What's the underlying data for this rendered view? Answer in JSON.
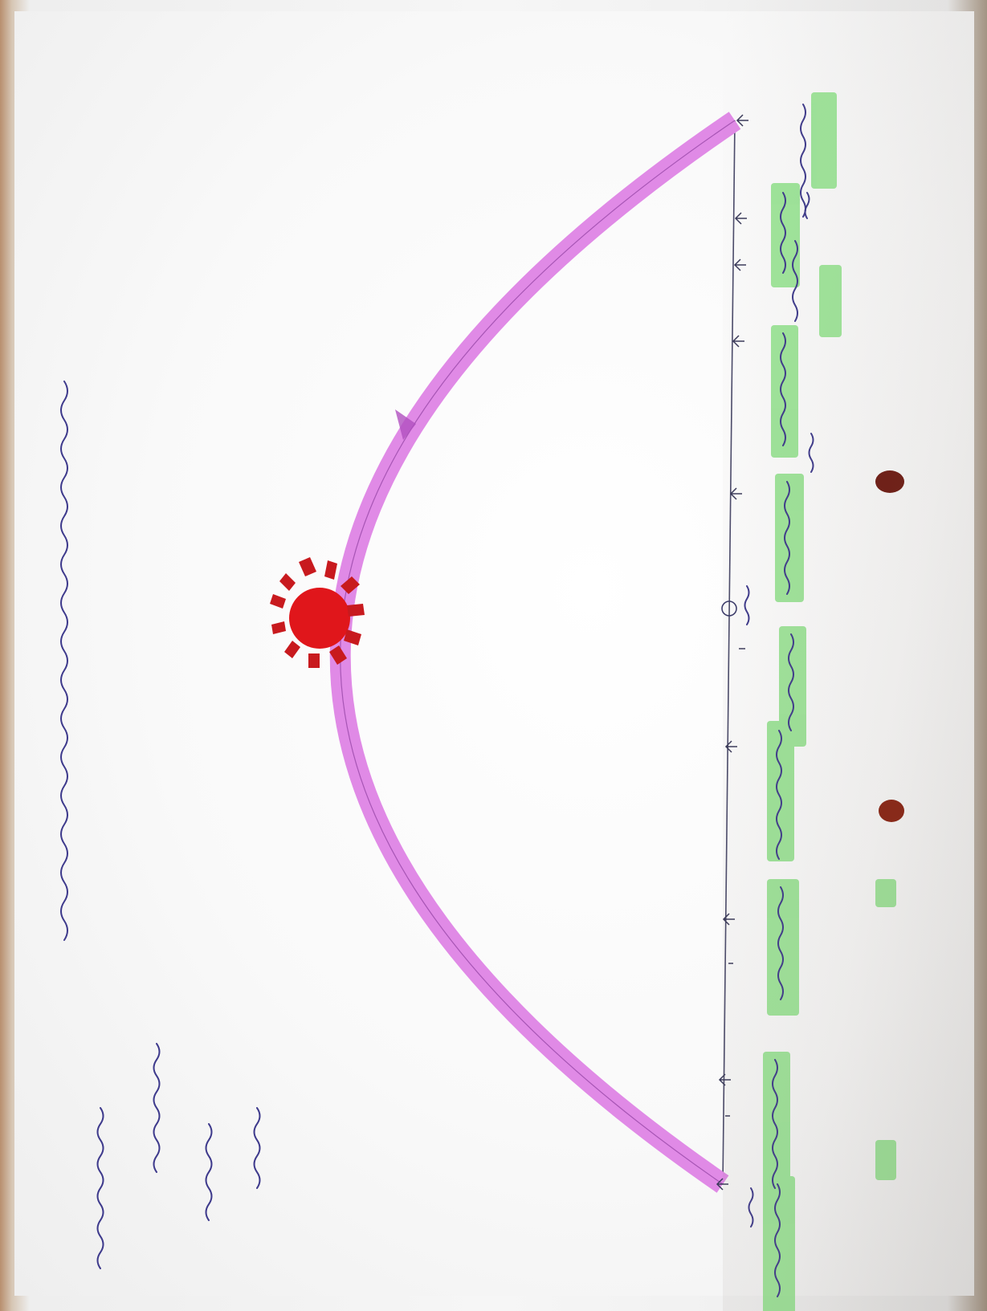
{
  "title": "",
  "sun": {
    "color": "#e0161b",
    "ray_color": "#c81a1e"
  },
  "arc": {
    "color": "#e08ae6",
    "line_color": "#8e3fa0"
  },
  "highlight_color": "#8fe28a",
  "ink_color": "#3e3a8c",
  "noon_tick_label": "",
  "time_labels": [],
  "side_notes": []
}
